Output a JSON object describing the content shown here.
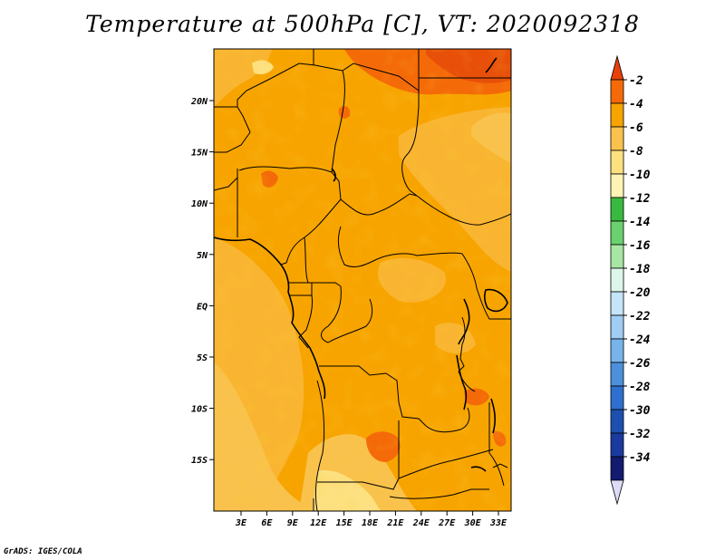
{
  "title": "Temperature at 500hPa [C], VT: 2020092318",
  "credit": "GrADS: IGES/COLA",
  "map": {
    "x_ticks": [
      "3E",
      "6E",
      "9E",
      "12E",
      "15E",
      "18E",
      "21E",
      "24E",
      "27E",
      "30E",
      "33E"
    ],
    "y_ticks": [
      "20N",
      "15N",
      "10N",
      "5N",
      "EQ",
      "5S",
      "10S",
      "15S"
    ]
  },
  "colorbar": {
    "labels": [
      "-2",
      "-4",
      "-6",
      "-8",
      "-10",
      "-12",
      "-14",
      "-16",
      "-18",
      "-20",
      "-22",
      "-24",
      "-26",
      "-28",
      "-30",
      "-32",
      "-34"
    ],
    "colors": [
      "#e8400a",
      "#f46a08",
      "#f7a400",
      "#f9c24c",
      "#fde07f",
      "#fdf4b4",
      "#3ab940",
      "#6ad16e",
      "#a7e6a3",
      "#dcf6ea",
      "#c4e4f8",
      "#a0cdf3",
      "#78b4ec",
      "#4c8fdd",
      "#2e6fcf",
      "#1d4fb0",
      "#1a3aa0",
      "#131a70",
      "#dcdcf8"
    ]
  }
}
